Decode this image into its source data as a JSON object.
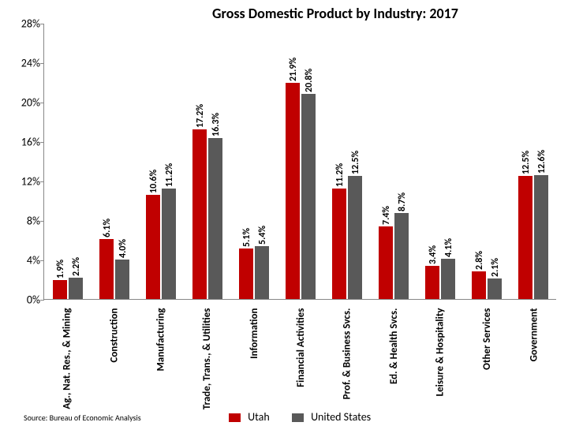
{
  "chart": {
    "type": "bar",
    "title": "Gross Domestic Product by Industry: 2017",
    "title_fontsize": 18,
    "ymax": 28,
    "ytick_step": 4,
    "yticks": [
      "0%",
      "4%",
      "8%",
      "12%",
      "16%",
      "20%",
      "24%",
      "28%"
    ],
    "series_a_name": "Utah",
    "series_b_name": "United States",
    "series_a_color": "#c00000",
    "series_b_color": "#595959",
    "background_color": "#ffffff",
    "axis_color": "#888888",
    "label_fontsize": 12,
    "categories": [
      {
        "label": "Ag., Nat. Res., & Mining",
        "a": 1.9,
        "b": 2.2,
        "a_txt": "1.9%",
        "b_txt": "2.2%"
      },
      {
        "label": "Construction",
        "a": 6.1,
        "b": 4.0,
        "a_txt": "6.1%",
        "b_txt": "4.0%"
      },
      {
        "label": "Manufacturing",
        "a": 10.6,
        "b": 11.2,
        "a_txt": "10.6%",
        "b_txt": "11.2%"
      },
      {
        "label": "Trade, Trans., & Utilities",
        "a": 17.2,
        "b": 16.3,
        "a_txt": "17.2%",
        "b_txt": "16.3%"
      },
      {
        "label": "Information",
        "a": 5.1,
        "b": 5.4,
        "a_txt": "5.1%",
        "b_txt": "5.4%"
      },
      {
        "label": "Financial Activities",
        "a": 21.9,
        "b": 20.8,
        "a_txt": "21.9%",
        "b_txt": "20.8%"
      },
      {
        "label": "Prof. & Business Svcs.",
        "a": 11.2,
        "b": 12.5,
        "a_txt": "11.2%",
        "b_txt": "12.5%"
      },
      {
        "label": "Ed. & Health Svcs.",
        "a": 7.4,
        "b": 8.7,
        "a_txt": "7.4%",
        "b_txt": "8.7%"
      },
      {
        "label": "Leisure & Hospitality",
        "a": 3.4,
        "b": 4.1,
        "a_txt": "3.4%",
        "b_txt": "4.1%"
      },
      {
        "label": "Other Services",
        "a": 2.8,
        "b": 2.1,
        "a_txt": "2.8%",
        "b_txt": "2.1%"
      },
      {
        "label": "Government",
        "a": 12.5,
        "b": 12.6,
        "a_txt": "12.5%",
        "b_txt": "12.6%"
      }
    ],
    "source": "Source: Bureau of Economic Analysis"
  }
}
